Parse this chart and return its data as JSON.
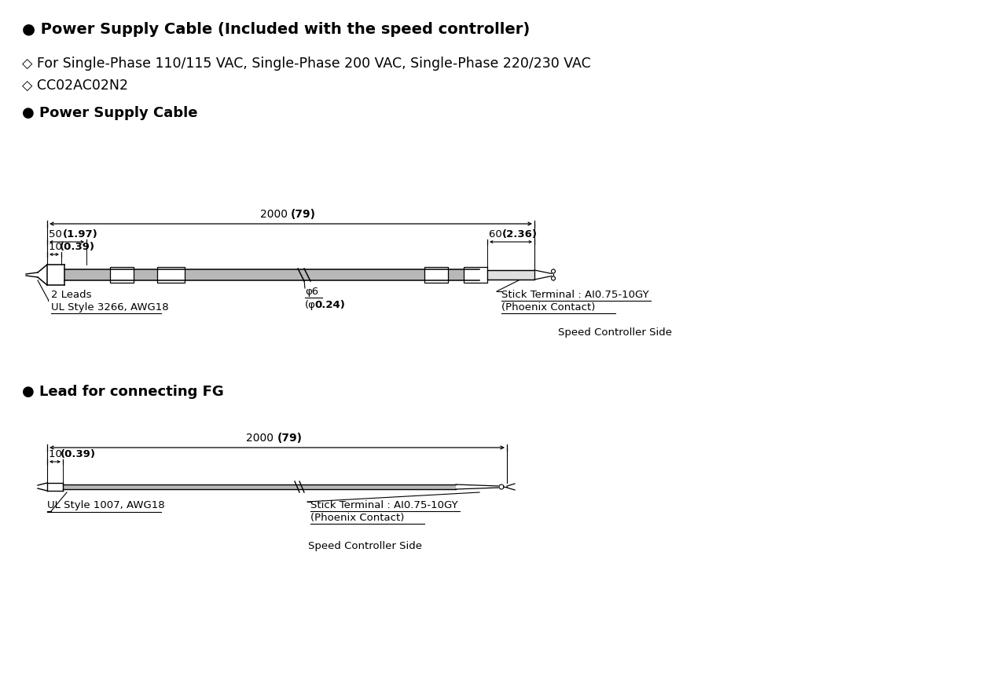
{
  "bg_color": "#ffffff",
  "text_color": "#000000",
  "line_color": "#000000",
  "gray_fill": "#b8b8b8",
  "title1": "● Power Supply Cable (Included with the speed controller)",
  "subtitle1": "◇ For Single-Phase 110/115 VAC, Single-Phase 200 VAC, Single-Phase 220/230 VAC",
  "subtitle2": "◇ CC02AC02N2",
  "section1": "● Power Supply Cable",
  "section2": "● Lead for connecting FG",
  "label_2leads": "2 Leads",
  "label_ul3266": "UL Style 3266, AWG18",
  "label_stick1": "Stick Terminal : AI0.75-10GY",
  "label_phoenix1": "(Phoenix Contact)",
  "label_speed1": "Speed Controller Side",
  "label_ul1007": "UL Style 1007, AWG18",
  "label_stick2": "Stick Terminal : AI0.75-10GY",
  "label_phoenix2": "(Phoenix Contact)",
  "label_speed2": "Speed Controller Side"
}
